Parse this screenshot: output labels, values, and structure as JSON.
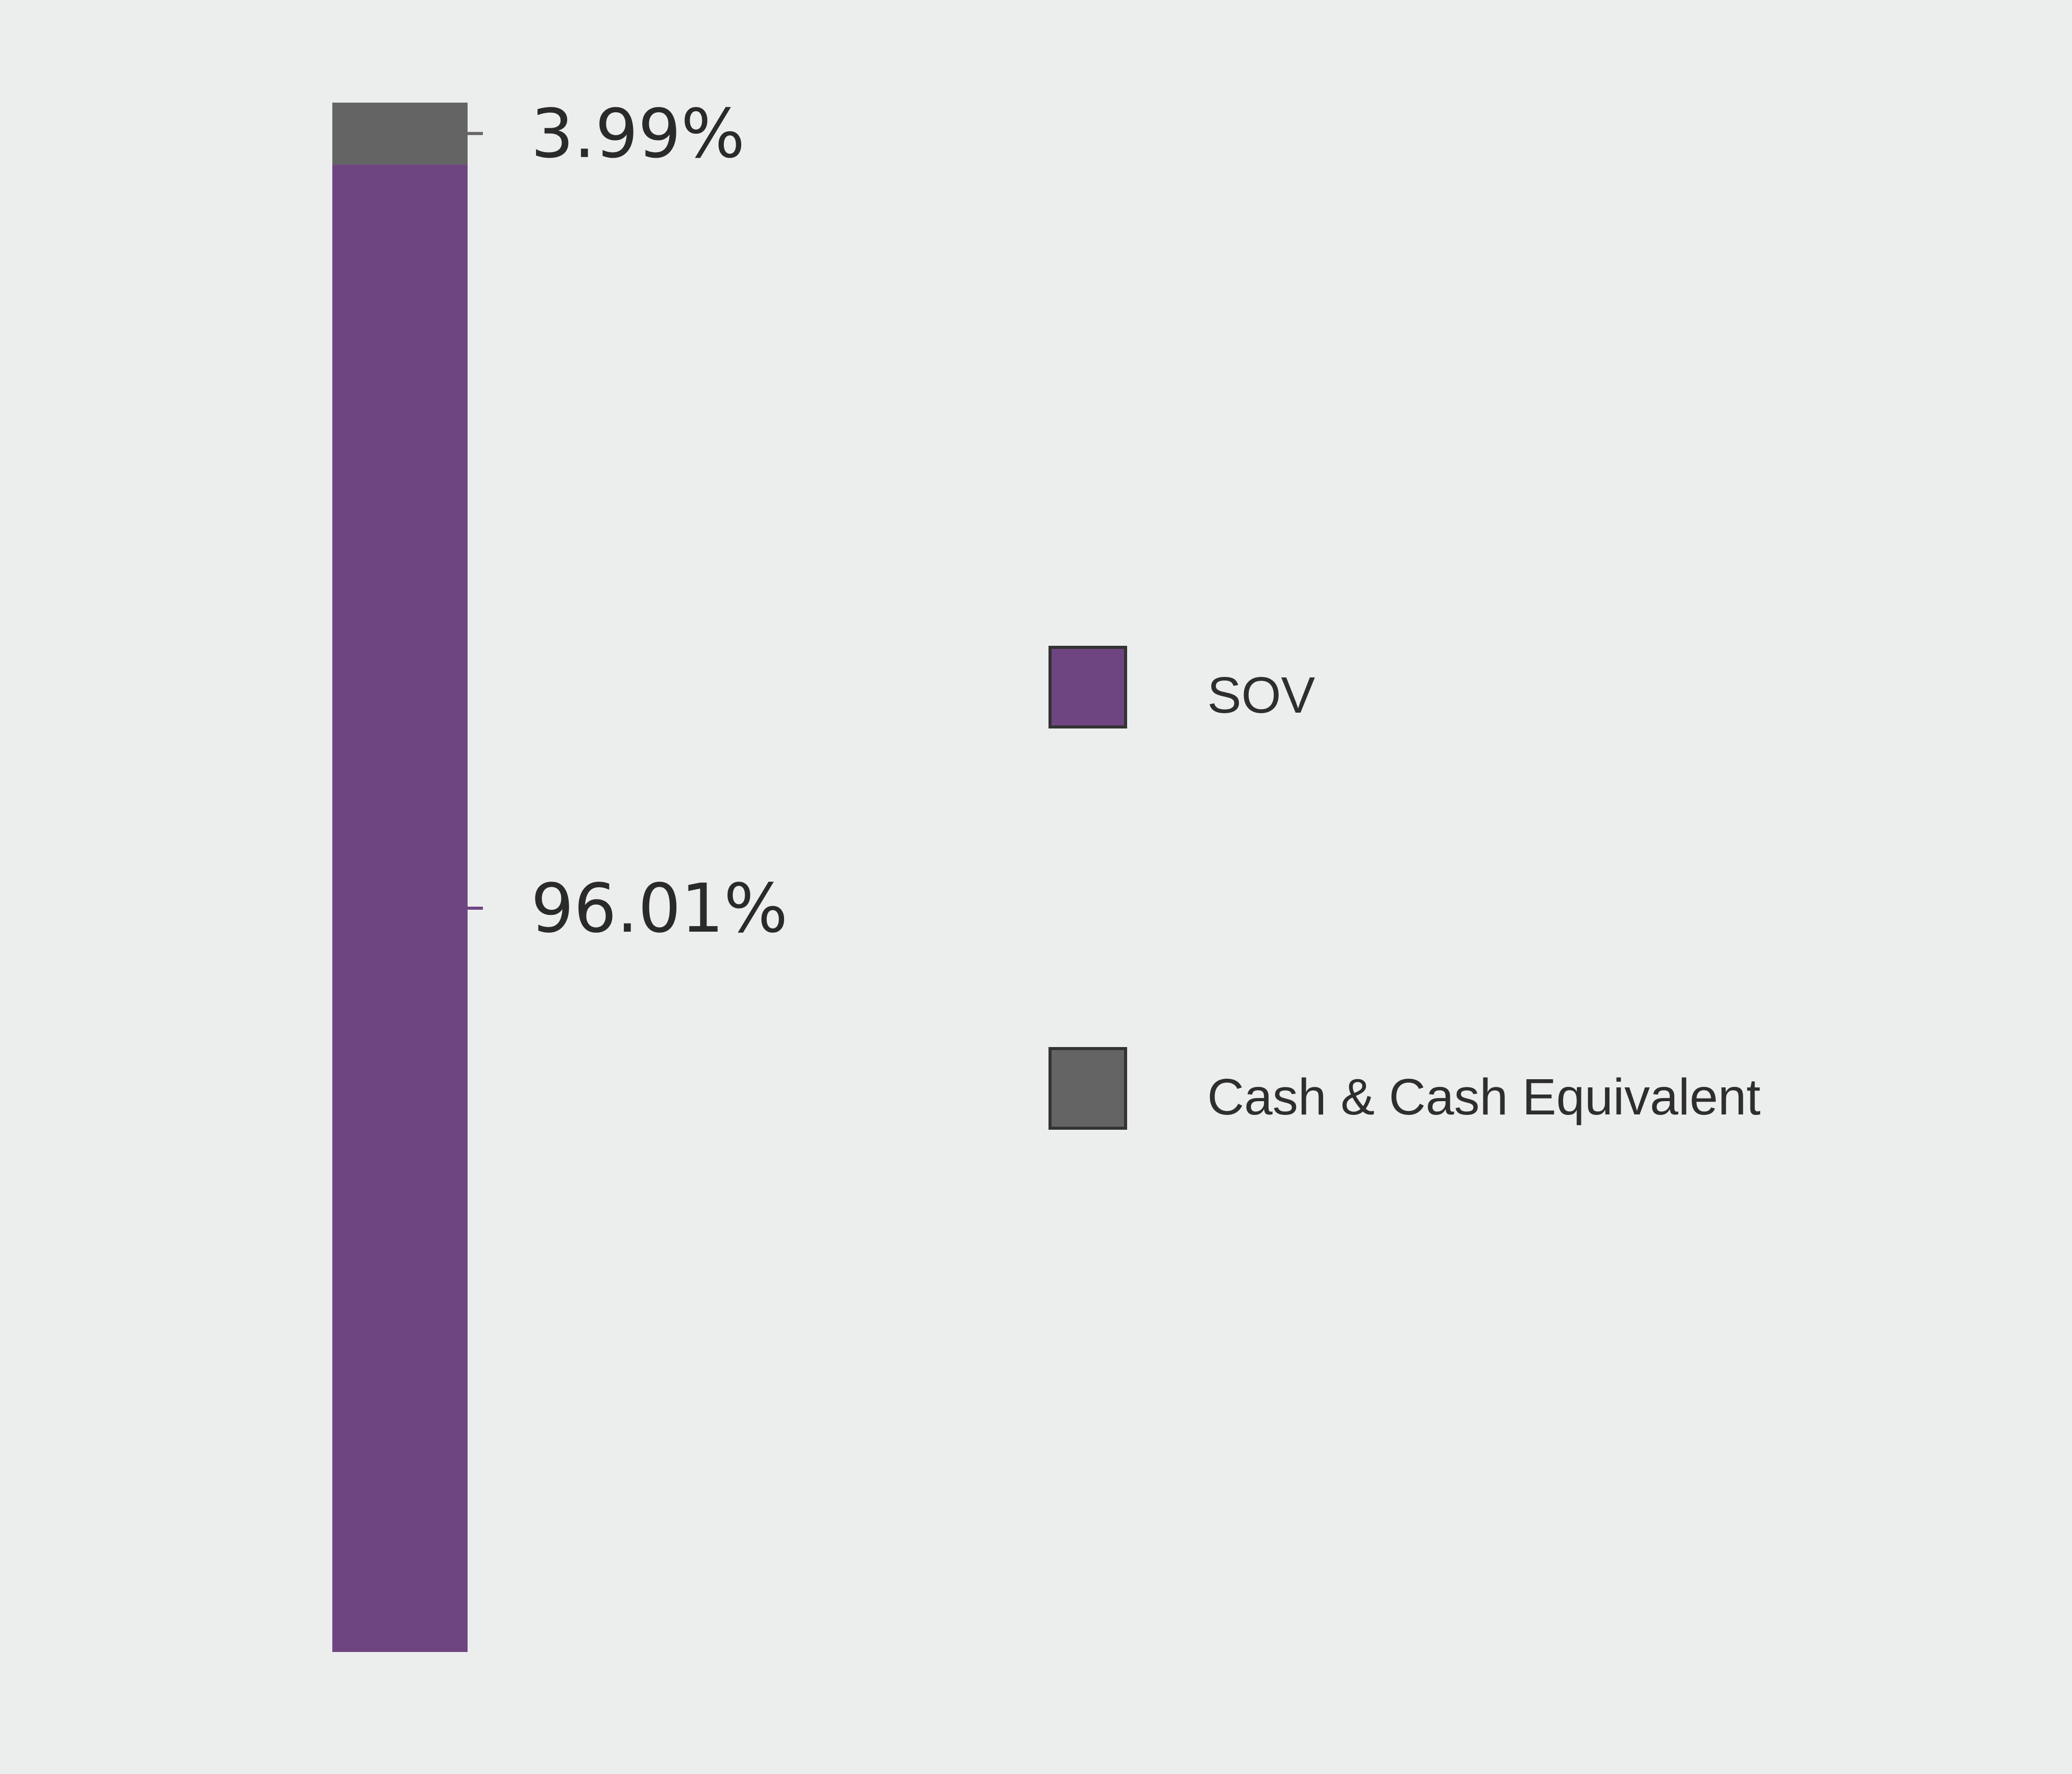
{
  "chart_data": {
    "type": "bar",
    "stacked": true,
    "categories": [
      ""
    ],
    "series": [
      {
        "name": "SOV",
        "values": [
          96.01
        ],
        "label": "96.01%",
        "color": "#6f4581"
      },
      {
        "name": "Cash & Cash Equivalent",
        "values": [
          3.99
        ],
        "label": "3.99%",
        "color": "#646464"
      }
    ],
    "title": "",
    "xlabel": "",
    "ylabel": "",
    "ylim": [
      0,
      100
    ],
    "grid": false,
    "legend_position": "right"
  },
  "legend": {
    "items": [
      {
        "label": "SOV",
        "color": "#6f4581"
      },
      {
        "label": "Cash & Cash Equivalent",
        "color": "#646464"
      }
    ]
  }
}
